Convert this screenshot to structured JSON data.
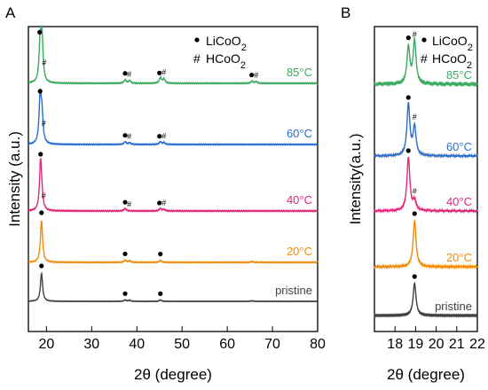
{
  "chart_data": [
    {
      "panel": "A",
      "type": "line",
      "xlabel": "2θ (degree)",
      "ylabel": "Intensity (a.u.)",
      "xlim": [
        16,
        80
      ],
      "xticks": [
        20,
        30,
        40,
        50,
        60,
        70,
        80
      ],
      "legend": [
        {
          "marker": "●",
          "text": "LiCoO2"
        },
        {
          "marker": "#",
          "text": "HCoO2"
        }
      ],
      "series": [
        {
          "name": "pristine",
          "color": "#404040",
          "peaks": [
            {
              "x": 18.9,
              "h": 1.0
            },
            {
              "x": 37.4,
              "h": 0.05
            },
            {
              "x": 38.4,
              "h": 0.04
            },
            {
              "x": 45.2,
              "h": 0.05
            },
            {
              "x": 65.5,
              "h": 0.02
            }
          ],
          "markers": [
            {
              "x": 18.9,
              "type": "dot"
            },
            {
              "x": 37.4,
              "type": "dot"
            },
            {
              "x": 45.2,
              "type": "dot"
            }
          ]
        },
        {
          "name": "20°C",
          "color": "#f08c0a",
          "peaks": [
            {
              "x": 18.9,
              "h": 1.0
            },
            {
              "x": 37.4,
              "h": 0.05
            },
            {
              "x": 38.4,
              "h": 0.04
            },
            {
              "x": 45.2,
              "h": 0.05
            },
            {
              "x": 65.5,
              "h": 0.02
            }
          ],
          "markers": [
            {
              "x": 18.9,
              "type": "dot"
            },
            {
              "x": 37.4,
              "type": "dot"
            },
            {
              "x": 45.2,
              "type": "dot"
            }
          ]
        },
        {
          "name": "40°C",
          "color": "#e0287a",
          "peaks": [
            {
              "x": 18.7,
              "h": 1.0
            },
            {
              "x": 19.0,
              "h": 0.15
            },
            {
              "x": 37.4,
              "h": 0.05
            },
            {
              "x": 45.2,
              "h": 0.05
            },
            {
              "x": 46.0,
              "h": 0.03
            }
          ],
          "markers": [
            {
              "x": 18.7,
              "type": "dot"
            },
            {
              "x": 19.4,
              "type": "hash"
            },
            {
              "x": 37.4,
              "type": "dot"
            },
            {
              "x": 38.3,
              "type": "hash"
            },
            {
              "x": 45.0,
              "type": "dot"
            },
            {
              "x": 46.0,
              "type": "hash"
            }
          ]
        },
        {
          "name": "60°C",
          "color": "#2a6fd0",
          "peaks": [
            {
              "x": 18.6,
              "h": 1.0
            },
            {
              "x": 19.0,
              "h": 0.6
            },
            {
              "x": 37.4,
              "h": 0.06
            },
            {
              "x": 38.4,
              "h": 0.04
            },
            {
              "x": 45.2,
              "h": 0.06
            },
            {
              "x": 46.0,
              "h": 0.04
            }
          ],
          "markers": [
            {
              "x": 18.6,
              "type": "dot"
            },
            {
              "x": 19.4,
              "type": "hash"
            },
            {
              "x": 37.4,
              "type": "dot"
            },
            {
              "x": 38.3,
              "type": "hash"
            },
            {
              "x": 45.0,
              "type": "dot"
            },
            {
              "x": 46.0,
              "type": "hash"
            }
          ]
        },
        {
          "name": "85°C",
          "color": "#3aaa60",
          "peaks": [
            {
              "x": 18.6,
              "h": 0.85
            },
            {
              "x": 19.0,
              "h": 1.0
            },
            {
              "x": 37.4,
              "h": 0.08
            },
            {
              "x": 38.4,
              "h": 0.06
            },
            {
              "x": 45.2,
              "h": 0.13
            },
            {
              "x": 46.0,
              "h": 0.1
            },
            {
              "x": 65.5,
              "h": 0.05
            },
            {
              "x": 66.4,
              "h": 0.04
            }
          ],
          "markers": [
            {
              "x": 18.5,
              "type": "dot"
            },
            {
              "x": 19.5,
              "type": "hash"
            },
            {
              "x": 37.4,
              "type": "dot"
            },
            {
              "x": 38.3,
              "type": "hash"
            },
            {
              "x": 45.0,
              "type": "dot"
            },
            {
              "x": 46.0,
              "type": "hash"
            },
            {
              "x": 65.4,
              "type": "dot"
            },
            {
              "x": 66.4,
              "type": "hash"
            }
          ]
        }
      ]
    },
    {
      "panel": "B",
      "type": "line",
      "xlabel": "2θ (degree)",
      "ylabel": "Intensity(a.u.)",
      "xlim": [
        17,
        22
      ],
      "xticks": [
        18,
        19,
        20,
        21,
        22
      ],
      "legend": [
        {
          "marker": "●",
          "text": "LiCoO2"
        },
        {
          "marker": "#",
          "text": "HCoO2"
        }
      ],
      "series": [
        {
          "name": "pristine",
          "color": "#404040",
          "peaks": [
            {
              "x": 18.95,
              "h": 1.0
            }
          ],
          "markers": [
            {
              "x": 18.95,
              "type": "dot"
            }
          ]
        },
        {
          "name": "20°C",
          "color": "#f08c0a",
          "peaks": [
            {
              "x": 18.95,
              "h": 1.0
            }
          ],
          "markers": [
            {
              "x": 18.95,
              "type": "dot"
            }
          ]
        },
        {
          "name": "40°C",
          "color": "#e0287a",
          "peaks": [
            {
              "x": 18.65,
              "h": 1.0
            },
            {
              "x": 18.95,
              "h": 0.18
            }
          ],
          "markers": [
            {
              "x": 18.65,
              "type": "dot"
            },
            {
              "x": 18.95,
              "type": "hash"
            }
          ]
        },
        {
          "name": "60°C",
          "color": "#2a6fd0",
          "peaks": [
            {
              "x": 18.65,
              "h": 1.0
            },
            {
              "x": 18.95,
              "h": 0.55
            }
          ],
          "markers": [
            {
              "x": 18.65,
              "type": "dot"
            },
            {
              "x": 18.95,
              "type": "hash"
            }
          ]
        },
        {
          "name": "85°C",
          "color": "#3aaa60",
          "peaks": [
            {
              "x": 18.65,
              "h": 0.85
            },
            {
              "x": 18.95,
              "h": 1.0
            }
          ],
          "markers": [
            {
              "x": 18.65,
              "type": "dot"
            },
            {
              "x": 18.95,
              "type": "hash"
            }
          ]
        }
      ]
    }
  ],
  "labels": {
    "panel_a": "A",
    "panel_b": "B"
  }
}
